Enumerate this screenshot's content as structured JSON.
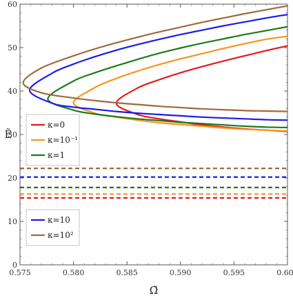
{
  "chart_data": {
    "type": "line",
    "xlabel": "Ω̃",
    "ylabel": "Ẽ",
    "xlim": [
      0.575,
      0.6
    ],
    "ylim": [
      0,
      60
    ],
    "xticks": [
      "0.575",
      "0.580",
      "0.585",
      "0.590",
      "0.595",
      "0.600"
    ],
    "yticks": [
      "0",
      "10",
      "20",
      "30",
      "40",
      "50",
      "60"
    ],
    "grid": false,
    "legends": [
      {
        "placement": "middle-left",
        "entries": [
          {
            "series": 0,
            "label": "κ=0"
          },
          {
            "series": 1,
            "label": "κ=10⁻¹"
          },
          {
            "series": 2,
            "label": "κ=1"
          }
        ]
      },
      {
        "placement": "bottom-left",
        "entries": [
          {
            "series": 3,
            "label": "κ=10"
          },
          {
            "series": 4,
            "label": "κ=10²"
          }
        ]
      }
    ],
    "series": [
      {
        "name": "κ=0",
        "color": "#e8161a",
        "upper_branch": [
          [
            0.584,
            37.2
          ],
          [
            0.586,
            40.7
          ],
          [
            0.588,
            42.6
          ],
          [
            0.59,
            44.2
          ],
          [
            0.592,
            45.6
          ],
          [
            0.594,
            46.9
          ],
          [
            0.596,
            48.1
          ],
          [
            0.598,
            49.3
          ],
          [
            0.6,
            50.4
          ]
        ],
        "lower_branch": [
          [
            0.584,
            37.2
          ],
          [
            0.586,
            34.6
          ],
          [
            0.588,
            33.6
          ],
          [
            0.59,
            32.9
          ],
          [
            0.592,
            32.2
          ],
          [
            0.594,
            31.7
          ],
          [
            0.596,
            31.3
          ],
          [
            0.598,
            31.0
          ],
          [
            0.6,
            30.7
          ]
        ],
        "dashed_level": 15.4
      },
      {
        "name": "κ=10⁻¹",
        "color": "#f7941d",
        "upper_branch": [
          [
            0.58,
            37.3
          ],
          [
            0.582,
            40.8
          ],
          [
            0.584,
            42.9
          ],
          [
            0.586,
            44.6
          ],
          [
            0.588,
            46.1
          ],
          [
            0.59,
            47.4
          ],
          [
            0.592,
            48.6
          ],
          [
            0.594,
            49.8
          ],
          [
            0.596,
            50.9
          ],
          [
            0.598,
            51.9
          ],
          [
            0.6,
            52.6
          ]
        ],
        "lower_branch": [
          [
            0.58,
            37.3
          ],
          [
            0.582,
            34.9
          ],
          [
            0.584,
            34.0
          ],
          [
            0.586,
            33.3
          ],
          [
            0.588,
            32.7
          ],
          [
            0.59,
            32.3
          ],
          [
            0.592,
            31.9
          ],
          [
            0.594,
            31.5
          ],
          [
            0.596,
            31.2
          ],
          [
            0.598,
            31.0
          ],
          [
            0.6,
            30.8
          ]
        ],
        "dashed_level": 16.3
      },
      {
        "name": "κ=1",
        "color": "#1a7a1a",
        "upper_branch": [
          [
            0.5776,
            38.2
          ],
          [
            0.58,
            42.3
          ],
          [
            0.582,
            44.2
          ],
          [
            0.584,
            45.8
          ],
          [
            0.586,
            47.3
          ],
          [
            0.588,
            48.7
          ],
          [
            0.59,
            49.9
          ],
          [
            0.592,
            51.0
          ],
          [
            0.594,
            52.0
          ],
          [
            0.596,
            53.0
          ],
          [
            0.598,
            53.9
          ],
          [
            0.6,
            54.8
          ]
        ],
        "lower_branch": [
          [
            0.5776,
            38.2
          ],
          [
            0.58,
            35.6
          ],
          [
            0.582,
            34.7
          ],
          [
            0.584,
            34.1
          ],
          [
            0.586,
            33.6
          ],
          [
            0.588,
            33.2
          ],
          [
            0.59,
            32.8
          ],
          [
            0.592,
            32.5
          ],
          [
            0.594,
            32.2
          ],
          [
            0.596,
            31.9
          ],
          [
            0.598,
            31.7
          ],
          [
            0.6,
            31.6
          ]
        ],
        "dashed_level": 17.8
      },
      {
        "name": "κ=10",
        "color": "#1a1aee",
        "upper_branch": [
          [
            0.5759,
            40.2
          ],
          [
            0.578,
            44.1
          ],
          [
            0.58,
            46.2
          ],
          [
            0.582,
            47.9
          ],
          [
            0.584,
            49.4
          ],
          [
            0.586,
            50.7
          ],
          [
            0.588,
            51.9
          ],
          [
            0.59,
            53.0
          ],
          [
            0.592,
            54.0
          ],
          [
            0.594,
            55.0
          ],
          [
            0.596,
            55.9
          ],
          [
            0.598,
            56.8
          ],
          [
            0.6,
            57.6
          ]
        ],
        "lower_branch": [
          [
            0.5759,
            40.2
          ],
          [
            0.578,
            37.2
          ],
          [
            0.58,
            36.3
          ],
          [
            0.582,
            35.8
          ],
          [
            0.584,
            35.3
          ],
          [
            0.586,
            34.9
          ],
          [
            0.588,
            34.6
          ],
          [
            0.59,
            34.3
          ],
          [
            0.592,
            34.0
          ],
          [
            0.594,
            33.8
          ],
          [
            0.596,
            33.6
          ],
          [
            0.598,
            33.4
          ],
          [
            0.6,
            33.3
          ]
        ],
        "dashed_level": 20.2
      },
      {
        "name": "κ=10²",
        "color": "#a0693a",
        "upper_branch": [
          [
            0.5753,
            41.9
          ],
          [
            0.577,
            45.3
          ],
          [
            0.58,
            48.1
          ],
          [
            0.582,
            49.7
          ],
          [
            0.584,
            51.1
          ],
          [
            0.586,
            52.4
          ],
          [
            0.588,
            53.6
          ],
          [
            0.59,
            54.7
          ],
          [
            0.592,
            55.8
          ],
          [
            0.594,
            56.8
          ],
          [
            0.596,
            57.8
          ],
          [
            0.598,
            58.7
          ],
          [
            0.6,
            59.6
          ]
        ],
        "lower_branch": [
          [
            0.5753,
            41.9
          ],
          [
            0.577,
            39.6
          ],
          [
            0.58,
            38.4
          ],
          [
            0.582,
            37.8
          ],
          [
            0.584,
            37.3
          ],
          [
            0.586,
            36.9
          ],
          [
            0.588,
            36.5
          ],
          [
            0.59,
            36.2
          ],
          [
            0.592,
            35.9
          ],
          [
            0.594,
            35.7
          ],
          [
            0.596,
            35.5
          ],
          [
            0.598,
            35.4
          ],
          [
            0.6,
            35.3
          ]
        ],
        "dashed_level": 22.2
      }
    ]
  }
}
